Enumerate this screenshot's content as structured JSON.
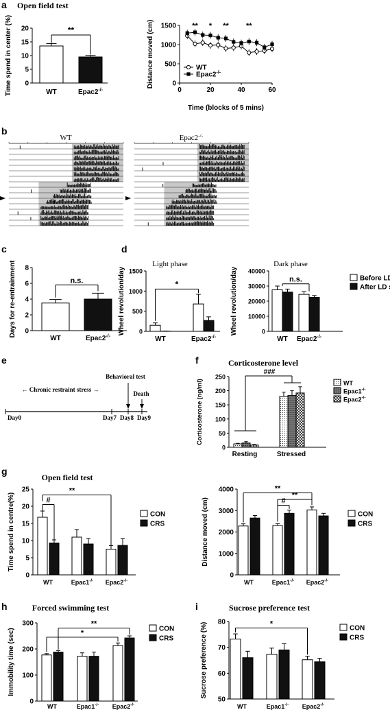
{
  "panels": {
    "a": {
      "letter": "a",
      "title": "Open field test"
    },
    "b": {
      "letter": "b",
      "wt_label": "WT",
      "ko_label": "Epac2",
      "ko_sup": "-/-"
    },
    "c": {
      "letter": "c"
    },
    "d": {
      "letter": "d",
      "light_title": "Light phase",
      "dark_title": "Dark phase"
    },
    "e": {
      "letter": "e",
      "crs_label": "← Chronic restraint stress →",
      "behav_label": "Behavioral test",
      "death_label": "Death",
      "days": [
        "Day0",
        "Day7",
        "Day8",
        "Day9"
      ]
    },
    "f": {
      "letter": "f",
      "title": "Corticosterone level"
    },
    "g": {
      "letter": "g",
      "title": "Open field test"
    },
    "h": {
      "letter": "h",
      "title": "Forced swimming test"
    },
    "i": {
      "letter": "i",
      "title": "Sucrose preference test"
    }
  },
  "chart_data": [
    {
      "id": "a-left",
      "type": "bar",
      "categories": [
        "WT",
        "Epac2"
      ],
      "category_sup": [
        "",
        "-/-"
      ],
      "values": [
        13.5,
        9.5
      ],
      "errors": [
        0.9,
        0.6
      ],
      "ylabel": "Time spend in center (%)",
      "ylim": [
        0,
        20
      ],
      "yticks": [
        0,
        5,
        10,
        15,
        20
      ],
      "annotations": [
        {
          "between": [
            0,
            1
          ],
          "text": "**"
        }
      ]
    },
    {
      "id": "a-right",
      "type": "line",
      "x": [
        5,
        10,
        15,
        20,
        25,
        30,
        35,
        40,
        45,
        50,
        55,
        60
      ],
      "series": [
        {
          "name": "WT",
          "marker": "open-circle",
          "values": [
            1230,
            1020,
            1050,
            980,
            990,
            900,
            920,
            960,
            790,
            820,
            840,
            890
          ]
        },
        {
          "name": "Epac2",
          "name_sup": "-/-",
          "marker": "filled-square",
          "values": [
            1300,
            1320,
            1250,
            1240,
            1180,
            1160,
            1070,
            1040,
            1080,
            1050,
            930,
            1010
          ]
        }
      ],
      "star_x": [
        10,
        20,
        30,
        45
      ],
      "star_text": [
        "**",
        "*",
        "**",
        "**"
      ],
      "xlabel": "Time (blocks of 5 mins)",
      "ylabel": "Distance moved (cm)",
      "xlim": [
        0,
        60
      ],
      "ylim": [
        0,
        1500
      ],
      "xticks": [
        0,
        20,
        40,
        60
      ],
      "yticks": [
        0,
        500,
        1000,
        1500
      ],
      "legend": "bottom-left"
    },
    {
      "id": "c",
      "type": "bar",
      "categories": [
        "WT",
        "Epac2"
      ],
      "category_sup": [
        "",
        "-/-"
      ],
      "values": [
        3.5,
        4.0
      ],
      "errors": [
        0.45,
        0.75
      ],
      "ylabel": "Days for re-entrainment",
      "ylim": [
        0,
        8
      ],
      "yticks": [
        0,
        2,
        4,
        6,
        8
      ],
      "annotations": [
        {
          "between": [
            0,
            1
          ],
          "text": "n.s."
        }
      ]
    },
    {
      "id": "d-light",
      "type": "bar",
      "categories": [
        "WT",
        "Epac2"
      ],
      "category_sup": [
        "",
        "-/-"
      ],
      "series": [
        {
          "name": "Before LD shift",
          "values": [
            150,
            680
          ],
          "errors": [
            60,
            240
          ]
        },
        {
          "name": "After LD shift",
          "values": [
            5,
            270
          ],
          "errors": [
            3,
            90
          ]
        }
      ],
      "ylabel": "Wheel revolution/day",
      "ylim": [
        0,
        1500
      ],
      "yticks": [
        0,
        500,
        1000,
        1500
      ],
      "annotations": [
        {
          "text": "*"
        }
      ]
    },
    {
      "id": "d-dark",
      "type": "bar",
      "categories": [
        "WT",
        "Epac2"
      ],
      "category_sup": [
        "",
        "-/-"
      ],
      "series": [
        {
          "name": "Before LD shift",
          "values": [
            27500,
            24500
          ],
          "errors": [
            2500,
            1800
          ]
        },
        {
          "name": "After LD shift",
          "values": [
            26000,
            22500
          ],
          "errors": [
            2000,
            1200
          ]
        }
      ],
      "ylabel": "Wheel revolution/day",
      "ylim": [
        0,
        40000
      ],
      "yticks": [
        0,
        10000,
        20000,
        30000,
        40000
      ],
      "legend": "right",
      "annotations": [
        {
          "text": "n.s."
        }
      ]
    },
    {
      "id": "f",
      "type": "bar",
      "categories": [
        "Resting",
        "Stressed"
      ],
      "series": [
        {
          "name": "WT",
          "values": [
            12,
            180
          ],
          "errors": [
            2,
            15
          ]
        },
        {
          "name": "Epac1",
          "name_sup": "-/-",
          "values": [
            15,
            183
          ],
          "errors": [
            5,
            17
          ]
        },
        {
          "name": "Epac2",
          "name_sup": "-/-",
          "values": [
            8,
            192
          ],
          "errors": [
            2,
            22
          ]
        }
      ],
      "ylabel": "Corticosterone (ng/ml)",
      "ylim": [
        0,
        250
      ],
      "yticks": [
        0,
        50,
        100,
        150,
        200,
        250
      ],
      "legend": "top-right",
      "annotations": [
        {
          "text": "###"
        }
      ]
    },
    {
      "id": "g-left",
      "type": "bar",
      "categories": [
        "WT",
        "Epac1",
        "Epac2"
      ],
      "category_sup": [
        "",
        "-/-",
        "-/-"
      ],
      "series": [
        {
          "name": "CON",
          "values": [
            16.8,
            11.0,
            7.5
          ],
          "errors": [
            1.8,
            2.2,
            1.0
          ]
        },
        {
          "name": "CRS",
          "values": [
            9.3,
            9.0,
            8.6
          ],
          "errors": [
            0.9,
            1.6,
            2.0
          ]
        }
      ],
      "ylabel": "Time spend in centre(%)",
      "ylim": [
        0,
        25
      ],
      "yticks": [
        0,
        5,
        10,
        15,
        20,
        25
      ],
      "legend": "top-right",
      "annotations": [
        {
          "text": "#"
        },
        {
          "text": "**"
        }
      ]
    },
    {
      "id": "g-right",
      "type": "bar",
      "categories": [
        "WT",
        "Epac1",
        "Epac2"
      ],
      "category_sup": [
        "",
        "-/-",
        "-/-"
      ],
      "series": [
        {
          "name": "CON",
          "values": [
            2280,
            2300,
            3030
          ],
          "errors": [
            100,
            90,
            140
          ]
        },
        {
          "name": "CRS",
          "values": [
            2650,
            2870,
            2750
          ],
          "errors": [
            120,
            150,
            120
          ]
        }
      ],
      "ylabel": "Distance moved (cm)",
      "ylim": [
        0,
        4000
      ],
      "yticks": [
        0,
        1000,
        2000,
        3000,
        4000
      ],
      "legend": "top-right",
      "annotations": [
        {
          "text": "**"
        },
        {
          "text": "**"
        },
        {
          "text": "#"
        }
      ]
    },
    {
      "id": "h",
      "type": "bar",
      "categories": [
        "WT",
        "Epac1",
        "Epac2"
      ],
      "category_sup": [
        "",
        "-/-",
        "-/-"
      ],
      "series": [
        {
          "name": "CON",
          "values": [
            177,
            172,
            213
          ],
          "errors": [
            5,
            13,
            10
          ]
        },
        {
          "name": "CRS",
          "values": [
            188,
            172,
            242
          ],
          "errors": [
            6,
            16,
            8
          ]
        }
      ],
      "ylabel": "Immobility time (sec)",
      "ylim": [
        0,
        300
      ],
      "yticks": [
        0,
        100,
        200,
        300
      ],
      "legend": "top-right",
      "annotations": [
        {
          "text": "**"
        },
        {
          "text": "*"
        }
      ]
    },
    {
      "id": "i",
      "type": "bar",
      "categories": [
        "WT",
        "Epac1",
        "Epac2"
      ],
      "category_sup": [
        "",
        "-/-",
        "-/-"
      ],
      "series": [
        {
          "name": "CON",
          "values": [
            73.2,
            67.3,
            65.2
          ],
          "errors": [
            2.0,
            2.4,
            1.4
          ]
        },
        {
          "name": "CRS",
          "values": [
            66.0,
            69.0,
            64.4
          ],
          "errors": [
            2.5,
            2.4,
            1.4
          ]
        }
      ],
      "ylabel": "Sucrose preference (%)",
      "ylim": [
        50,
        80
      ],
      "yticks": [
        50,
        60,
        70,
        80
      ],
      "legend": "top-right",
      "annotations": [
        {
          "text": "*"
        }
      ]
    }
  ]
}
